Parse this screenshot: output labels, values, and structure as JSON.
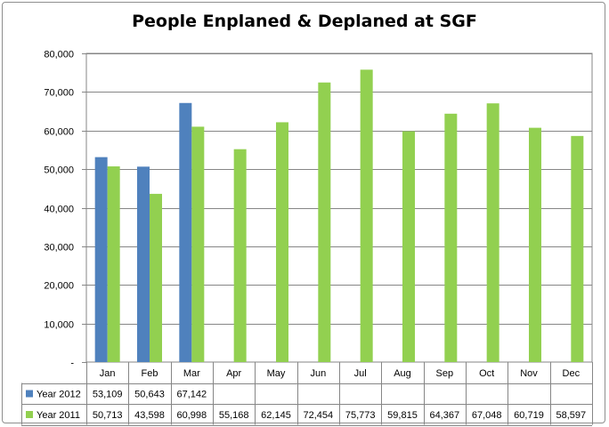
{
  "chart_data": {
    "type": "bar",
    "title": "People Enplaned & Deplaned at SGF",
    "xlabel": "",
    "ylabel": "",
    "categories": [
      "Jan",
      "Feb",
      "Mar",
      "Apr",
      "May",
      "Jun",
      "Jul",
      "Aug",
      "Sep",
      "Oct",
      "Nov",
      "Dec"
    ],
    "series": [
      {
        "name": "Year 2012",
        "color": "#4f81bd",
        "values": [
          53109,
          50643,
          67142,
          null,
          null,
          null,
          null,
          null,
          null,
          null,
          null,
          null
        ],
        "display": [
          "53,109",
          "50,643",
          "67,142",
          "",
          "",
          "",
          "",
          "",
          "",
          "",
          "",
          ""
        ]
      },
      {
        "name": "Year 2011",
        "color": "#92d050",
        "values": [
          50713,
          43598,
          60998,
          55168,
          62145,
          72454,
          75773,
          59815,
          64367,
          67048,
          60719,
          58597
        ],
        "display": [
          "50,713",
          "43,598",
          "60,998",
          "55,168",
          "62,145",
          "72,454",
          "75,773",
          "59,815",
          "64,367",
          "67,048",
          "60,719",
          "58,597"
        ]
      }
    ],
    "ylim": [
      0,
      80000
    ],
    "yticks": [
      0,
      10000,
      20000,
      30000,
      40000,
      50000,
      60000,
      70000,
      80000
    ],
    "ytick_labels": [
      "-",
      "10,000",
      "20,000",
      "30,000",
      "40,000",
      "50,000",
      "60,000",
      "70,000",
      "80,000"
    ],
    "grid": true,
    "legend": "data-table"
  }
}
